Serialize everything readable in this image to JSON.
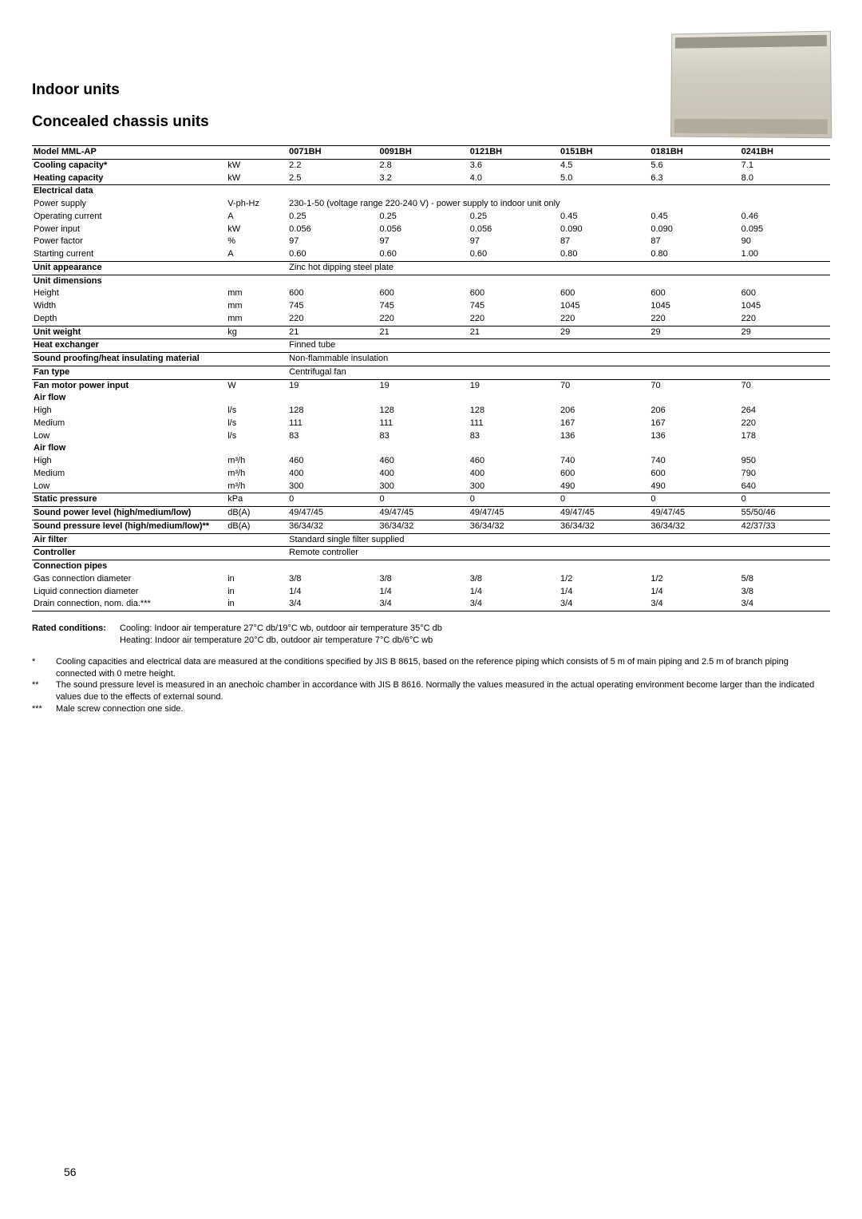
{
  "titles": {
    "h2": "Indoor units",
    "h3": "Concealed chassis units"
  },
  "page_number": "56",
  "table": {
    "columns": [
      "",
      "",
      "0071BH",
      "0091BH",
      "0121BH",
      "0151BH",
      "0181BH",
      "0241BH"
    ],
    "header_label": "Model MML-AP",
    "rows": [
      {
        "label": "Cooling capacity*",
        "bold": true,
        "unit": "kW",
        "vals": [
          "2.2",
          "2.8",
          "3.6",
          "4.5",
          "5.6",
          "7.1"
        ],
        "topline": true
      },
      {
        "label": "Heating capacity",
        "bold": true,
        "unit": "kW",
        "vals": [
          "2.5",
          "3.2",
          "4.0",
          "5.0",
          "6.3",
          "8.0"
        ]
      },
      {
        "label": "Electrical data",
        "bold": true,
        "unit": "",
        "vals": [
          "",
          "",
          "",
          "",
          "",
          ""
        ],
        "topline": true
      },
      {
        "label": "Power supply",
        "unit": "V-ph-Hz",
        "span": "230-1-50 (voltage range 220-240 V) - power supply to indoor unit only"
      },
      {
        "label": "Operating current",
        "unit": "A",
        "vals": [
          "0.25",
          "0.25",
          "0.25",
          "0.45",
          "0.45",
          "0.46"
        ]
      },
      {
        "label": "Power input",
        "unit": "kW",
        "vals": [
          "0.056",
          "0.056",
          "0.056",
          "0.090",
          "0.090",
          "0.095"
        ]
      },
      {
        "label": "Power factor",
        "unit": "%",
        "vals": [
          "97",
          "97",
          "97",
          "87",
          "87",
          "90"
        ]
      },
      {
        "label": "Starting current",
        "unit": "A",
        "vals": [
          "0.60",
          "0.60",
          "0.60",
          "0.80",
          "0.80",
          "1.00"
        ]
      },
      {
        "label": "Unit appearance",
        "bold": true,
        "unit": "",
        "span": "Zinc hot dipping steel plate",
        "topline": true
      },
      {
        "label": "Unit dimensions",
        "bold": true,
        "unit": "",
        "vals": [
          "",
          "",
          "",
          "",
          "",
          ""
        ],
        "topline": true
      },
      {
        "label": "Height",
        "unit": "mm",
        "vals": [
          "600",
          "600",
          "600",
          "600",
          "600",
          "600"
        ]
      },
      {
        "label": "Width",
        "unit": "mm",
        "vals": [
          "745",
          "745",
          "745",
          "1045",
          "1045",
          "1045"
        ]
      },
      {
        "label": "Depth",
        "unit": "mm",
        "vals": [
          "220",
          "220",
          "220",
          "220",
          "220",
          "220"
        ]
      },
      {
        "label": "Unit weight",
        "bold": true,
        "unit": "kg",
        "vals": [
          "21",
          "21",
          "21",
          "29",
          "29",
          "29"
        ],
        "topline": true
      },
      {
        "label": "Heat exchanger",
        "bold": true,
        "unit": "",
        "span": "Finned tube",
        "topline": true
      },
      {
        "label": "Sound proofing/heat insulating material",
        "bold": true,
        "unit": "",
        "span": "Non-flammable insulation",
        "topline": true
      },
      {
        "label": "Fan type",
        "bold": true,
        "unit": "",
        "span": "Centrifugal fan",
        "topline": true
      },
      {
        "label": "Fan motor power input",
        "bold": true,
        "unit": "W",
        "vals": [
          "19",
          "19",
          "19",
          "70",
          "70",
          "70"
        ],
        "topline": true
      },
      {
        "label": "Air flow",
        "bold": true,
        "unit": "",
        "vals": [
          "",
          "",
          "",
          "",
          "",
          ""
        ]
      },
      {
        "label": "High",
        "unit": "l/s",
        "vals": [
          "128",
          "128",
          "128",
          "206",
          "206",
          "264"
        ]
      },
      {
        "label": "Medium",
        "unit": "l/s",
        "vals": [
          "111",
          "111",
          "111",
          "167",
          "167",
          "220"
        ]
      },
      {
        "label": "Low",
        "unit": "l/s",
        "vals": [
          "83",
          "83",
          "83",
          "136",
          "136",
          "178"
        ]
      },
      {
        "label": "Air flow",
        "bold": true,
        "unit": "",
        "vals": [
          "",
          "",
          "",
          "",
          "",
          ""
        ]
      },
      {
        "label": "High",
        "unit": "m³/h",
        "vals": [
          "460",
          "460",
          "460",
          "740",
          "740",
          "950"
        ]
      },
      {
        "label": "Medium",
        "unit": "m³/h",
        "vals": [
          "400",
          "400",
          "400",
          "600",
          "600",
          "790"
        ]
      },
      {
        "label": "Low",
        "unit": "m³/h",
        "vals": [
          "300",
          "300",
          "300",
          "490",
          "490",
          "640"
        ]
      },
      {
        "label": "Static pressure",
        "bold": true,
        "unit": "kPa",
        "vals": [
          "0",
          "0",
          "0",
          "0",
          "0",
          "0"
        ],
        "topline": true
      },
      {
        "label": "Sound power level (high/medium/low)",
        "bold": true,
        "unit": "dB(A)",
        "vals": [
          "49/47/45",
          "49/47/45",
          "49/47/45",
          "49/47/45",
          "49/47/45",
          "55/50/46"
        ],
        "topline": true
      },
      {
        "label": "Sound pressure level  (high/medium/low)**",
        "bold": true,
        "unit": "dB(A)",
        "vals": [
          "36/34/32",
          "36/34/32",
          "36/34/32",
          "36/34/32",
          "36/34/32",
          "42/37/33"
        ],
        "topline": true
      },
      {
        "label": "Air filter",
        "bold": true,
        "unit": "",
        "span": "Standard single filter supplied",
        "topline": true
      },
      {
        "label": "Controller",
        "bold": true,
        "unit": "",
        "span": "Remote controller",
        "topline": true
      },
      {
        "label": "Connection pipes",
        "bold": true,
        "unit": "",
        "vals": [
          "",
          "",
          "",
          "",
          "",
          ""
        ],
        "topline": true
      },
      {
        "label": "Gas connection diameter",
        "unit": "in",
        "vals": [
          "3/8",
          "3/8",
          "3/8",
          "1/2",
          "1/2",
          "5/8"
        ]
      },
      {
        "label": "Liquid connection diameter",
        "unit": "in",
        "vals": [
          "1/4",
          "1/4",
          "1/4",
          "1/4",
          "1/4",
          "3/8"
        ]
      },
      {
        "label": "Drain connection, nom. dia.***",
        "unit": "in",
        "vals": [
          "3/4",
          "3/4",
          "3/4",
          "3/4",
          "3/4",
          "3/4"
        ],
        "botline": true
      }
    ]
  },
  "rated": {
    "label": "Rated conditions:",
    "line1": "Cooling: Indoor air temperature 27°C db/19°C wb, outdoor air temperature 35°C db",
    "line2": "Heating: Indoor air temperature 20°C db, outdoor air temperature 7°C db/6°C wb"
  },
  "footnotes": [
    {
      "mark": "*",
      "text": "Cooling capacities and electrical data are measured at the conditions specified by JIS B 8615, based on the reference piping which consists of 5 m of main piping and 2.5 m of branch piping connected with 0 metre height."
    },
    {
      "mark": "**",
      "text": "The sound pressure level is measured in an anechoic chamber in accordance with JIS B 8616. Normally the values measured in the actual operating environment become larger than the indicated values due to the effects of external sound."
    },
    {
      "mark": "***",
      "text": "Male screw connection one side."
    }
  ]
}
